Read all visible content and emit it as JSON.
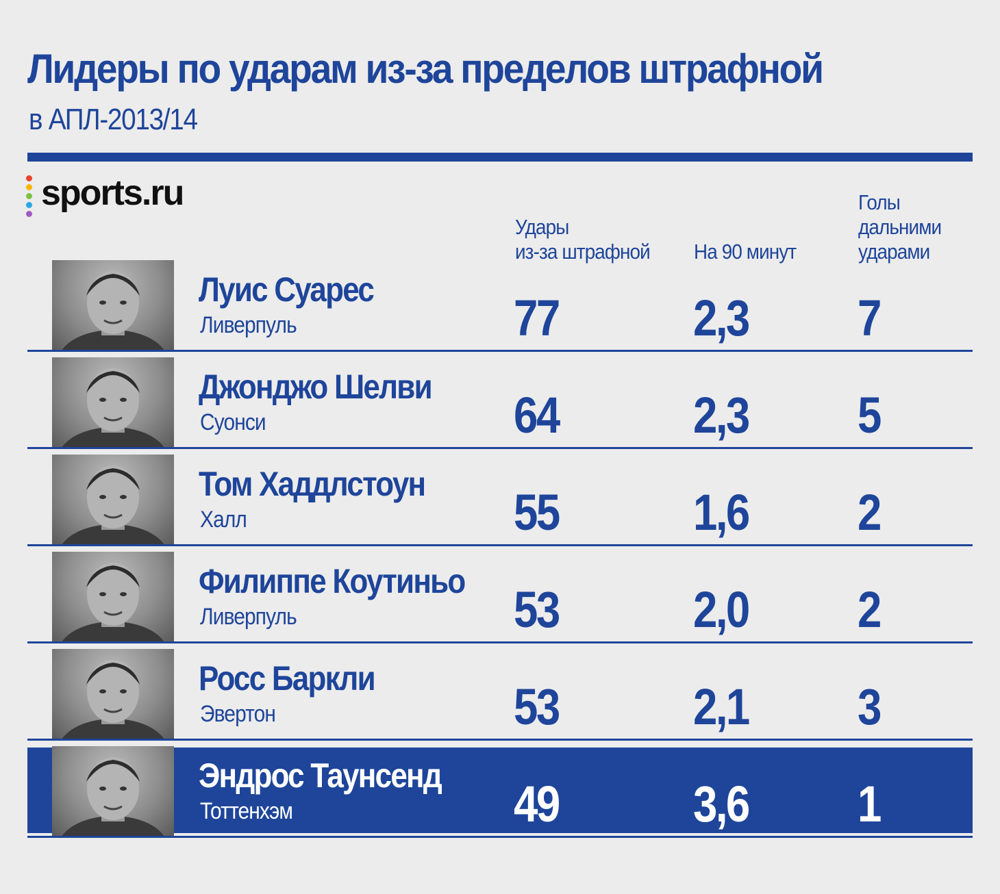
{
  "header": {
    "title": "Лидеры по ударам из-за пределов штрафной",
    "subtitle": "в АПЛ-2013/14"
  },
  "logo": {
    "text": "sports.ru",
    "dot_colors": [
      "#e8452c",
      "#f7b500",
      "#7cc242",
      "#2aa7e0",
      "#a259c4"
    ]
  },
  "colors": {
    "accent": "#1e459a",
    "background": "#ececec",
    "highlight_text": "#ffffff"
  },
  "chart_data": {
    "type": "table",
    "columns": [
      {
        "key": "shots",
        "label_lines": [
          "Удары",
          "из-за штрафной"
        ]
      },
      {
        "key": "per90",
        "label_lines": [
          "На 90 минут"
        ]
      },
      {
        "key": "goals",
        "label_lines": [
          "Голы",
          "дальними",
          "ударами"
        ]
      }
    ],
    "rows": [
      {
        "name": "Луис Суарес",
        "club": "Ливерпуль",
        "shots": "77",
        "per90": "2,3",
        "goals": "7",
        "highlight": false
      },
      {
        "name": "Джонджо Шелви",
        "club": "Суонси",
        "shots": "64",
        "per90": "2,3",
        "goals": "5",
        "highlight": false
      },
      {
        "name": "Том Хаддлстоун",
        "club": "Халл",
        "shots": "55",
        "per90": "1,6",
        "goals": "2",
        "highlight": false
      },
      {
        "name": "Филиппе Коутиньо",
        "club": "Ливерпуль",
        "shots": "53",
        "per90": "2,0",
        "goals": "2",
        "highlight": false
      },
      {
        "name": "Росс Баркли",
        "club": "Эвертон",
        "shots": "53",
        "per90": "2,1",
        "goals": "3",
        "highlight": false
      },
      {
        "name": "Эндрос Таунсенд",
        "club": "Тоттенхэм",
        "shots": "49",
        "per90": "3,6",
        "goals": "1",
        "highlight": true
      }
    ]
  }
}
